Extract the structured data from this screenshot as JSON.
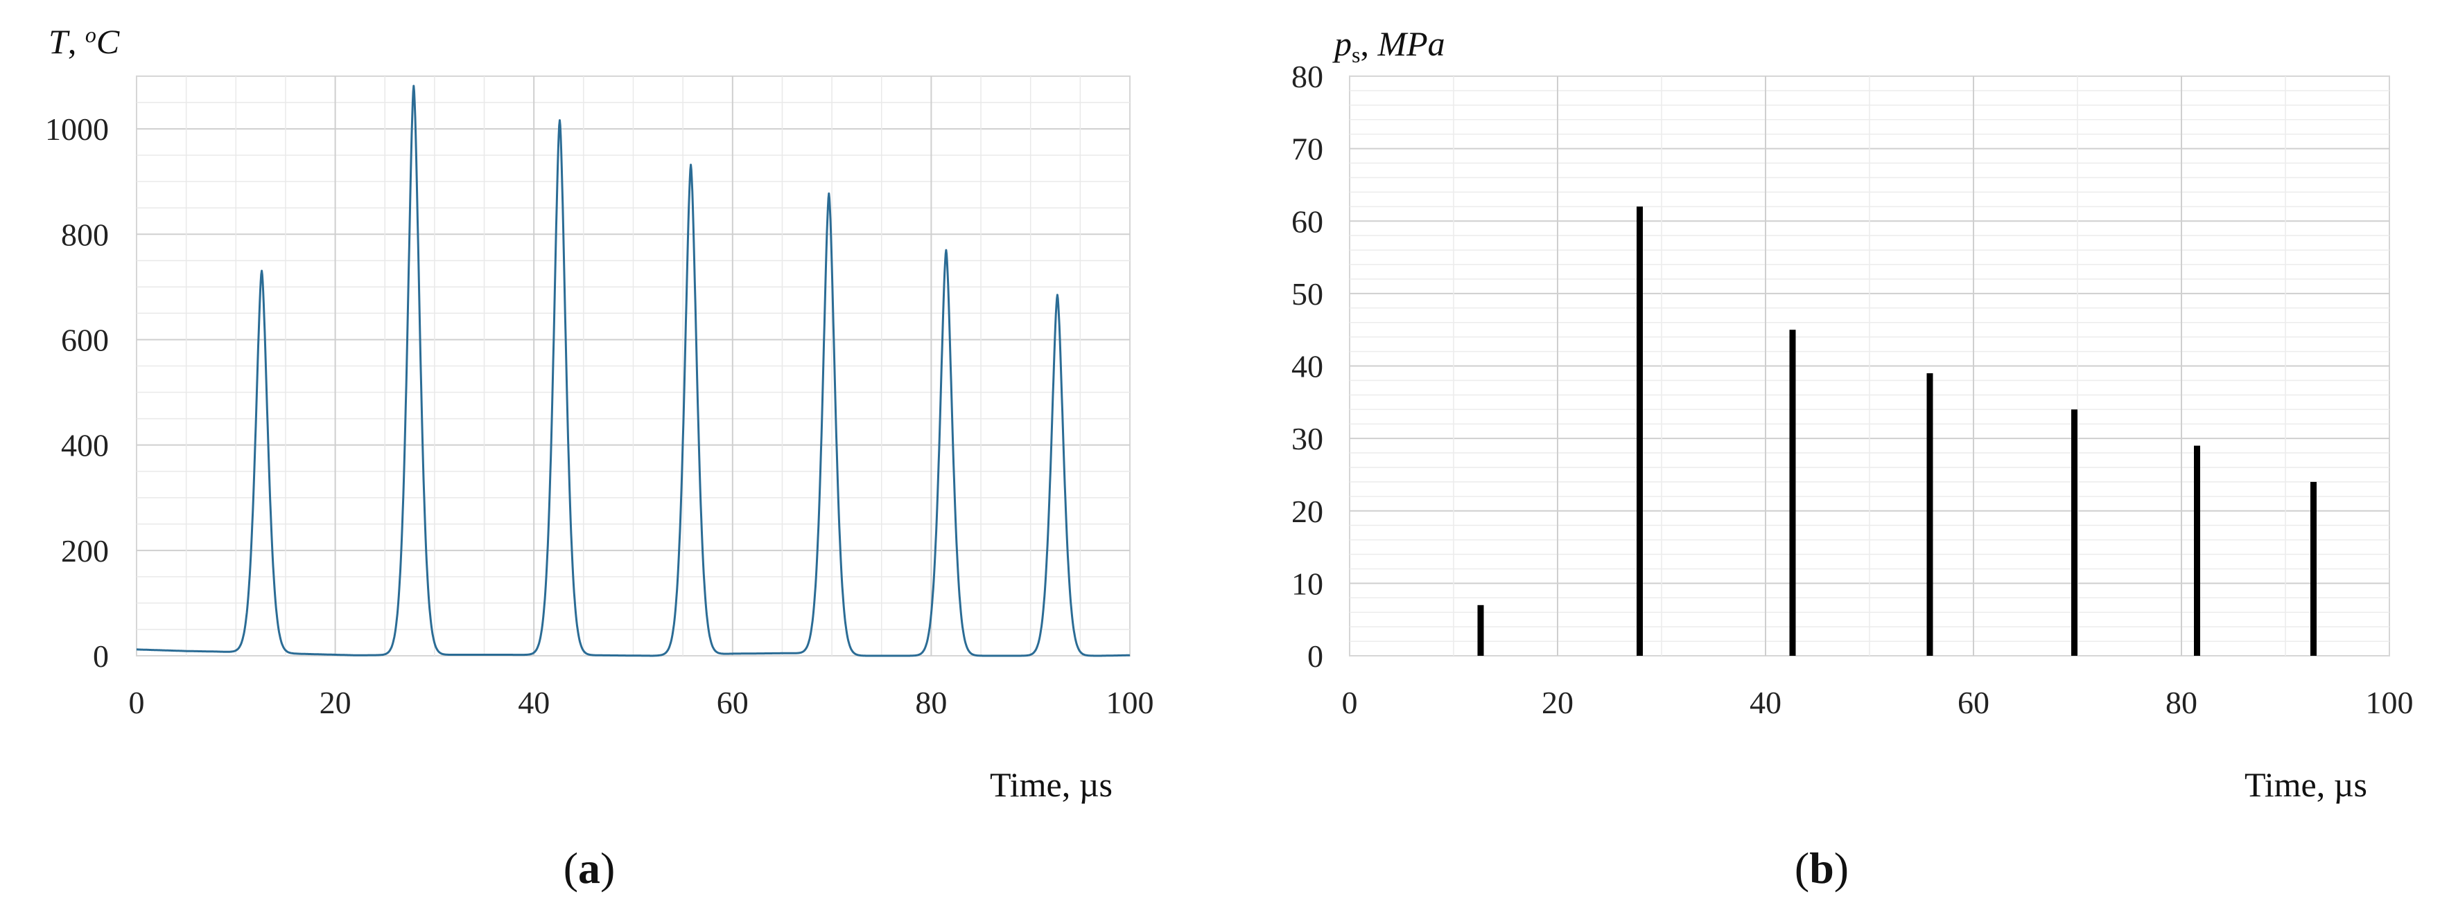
{
  "chart_data": [
    {
      "type": "line",
      "panel_label": "a",
      "ylabel": "T",
      "ylabel_sep": ", ",
      "ylabel_unit_sup": "o",
      "ylabel_unit": "C",
      "xlabel": "Time, µs",
      "xlim": [
        0,
        100
      ],
      "ylim": [
        0,
        1100
      ],
      "x_ticks": [
        0,
        20,
        40,
        60,
        80,
        100
      ],
      "y_ticks": [
        0,
        200,
        400,
        600,
        800,
        1000
      ],
      "grid": true,
      "legend": "none",
      "line_color": "#2b6c95",
      "baseline": [
        [
          0,
          12
        ],
        [
          5,
          9
        ],
        [
          8,
          8
        ],
        [
          18,
          3
        ],
        [
          22,
          1
        ],
        [
          33,
          2
        ],
        [
          37,
          2
        ],
        [
          46,
          1
        ],
        [
          52,
          0
        ],
        [
          60,
          4
        ],
        [
          66,
          5
        ],
        [
          73,
          0
        ],
        [
          78,
          0
        ],
        [
          86,
          0
        ],
        [
          89,
          0
        ],
        [
          97,
          0
        ],
        [
          100,
          1
        ]
      ],
      "peaks": [
        {
          "x": 12.6,
          "y": 725
        },
        {
          "x": 27.9,
          "y": 1080
        },
        {
          "x": 42.6,
          "y": 1015
        },
        {
          "x": 55.8,
          "y": 930
        },
        {
          "x": 69.7,
          "y": 875
        },
        {
          "x": 81.5,
          "y": 770
        },
        {
          "x": 92.7,
          "y": 685
        }
      ]
    },
    {
      "type": "bar",
      "panel_label": "b",
      "ylabel": "p",
      "ylabel_sub": "s",
      "ylabel_sep": ", ",
      "ylabel_unit": "MPa",
      "xlabel": "Time, µs",
      "xlim": [
        0,
        100
      ],
      "ylim": [
        0,
        80
      ],
      "x_ticks": [
        0,
        20,
        40,
        60,
        80,
        100
      ],
      "y_ticks": [
        0,
        10,
        20,
        30,
        40,
        50,
        60,
        70,
        80
      ],
      "grid": true,
      "legend": "none",
      "bar_color": "#000000",
      "x": [
        12.6,
        27.9,
        42.6,
        55.8,
        69.7,
        81.5,
        92.7
      ],
      "values": [
        7,
        62,
        45,
        39,
        34,
        29,
        24
      ]
    }
  ]
}
